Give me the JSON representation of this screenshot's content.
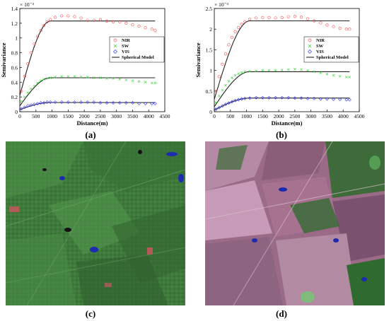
{
  "panels": {
    "a_label": "(a)",
    "b_label": "(b)",
    "c_label": "(c)",
    "d_label": "(d)"
  },
  "chart_data": [
    {
      "type": "scatter",
      "panel": "(a)",
      "title": "",
      "xlabel": "Distance(m)",
      "ylabel": "Semivariance",
      "y_exponent": "× 10⁻³",
      "xlim": [
        0,
        4500
      ],
      "ylim": [
        0,
        1.4
      ],
      "xticks": [
        0,
        500,
        1000,
        1500,
        2000,
        2500,
        3000,
        3500,
        4000,
        4500
      ],
      "yticks": [
        0,
        0.2,
        0.4,
        0.6,
        0.8,
        1,
        1.2,
        1.4
      ],
      "legend_position": "right",
      "legend": [
        "NIR",
        "SW",
        "VIS",
        "Spherical Model"
      ],
      "x": [
        50,
        150,
        250,
        350,
        450,
        550,
        650,
        750,
        850,
        950,
        1100,
        1300,
        1500,
        1700,
        1900,
        2100,
        2300,
        2500,
        2700,
        2900,
        3100,
        3300,
        3500,
        3700,
        3900,
        4100,
        4200
      ],
      "series": [
        {
          "name": "NIR",
          "marker": "circle",
          "color": "#ff4d4d",
          "values": [
            0.28,
            0.48,
            0.65,
            0.8,
            0.92,
            1.02,
            1.1,
            1.17,
            1.22,
            1.25,
            1.28,
            1.3,
            1.3,
            1.29,
            1.27,
            1.24,
            1.24,
            1.25,
            1.23,
            1.22,
            1.22,
            1.2,
            1.18,
            1.16,
            1.14,
            1.12,
            1.1
          ]
        },
        {
          "name": "SW",
          "marker": "x",
          "color": "#33d633",
          "values": [
            0.14,
            0.2,
            0.26,
            0.31,
            0.35,
            0.39,
            0.42,
            0.44,
            0.45,
            0.46,
            0.47,
            0.48,
            0.48,
            0.48,
            0.47,
            0.47,
            0.46,
            0.46,
            0.45,
            0.45,
            0.44,
            0.43,
            0.42,
            0.41,
            0.4,
            0.39,
            0.39
          ]
        },
        {
          "name": "VIS",
          "marker": "diamond",
          "color": "#3333ff",
          "values": [
            0.04,
            0.06,
            0.08,
            0.09,
            0.1,
            0.11,
            0.12,
            0.12,
            0.13,
            0.13,
            0.13,
            0.13,
            0.13,
            0.13,
            0.13,
            0.13,
            0.13,
            0.12,
            0.12,
            0.12,
            0.12,
            0.12,
            0.12,
            0.11,
            0.11,
            0.11,
            0.11
          ]
        }
      ],
      "models": [
        {
          "name": "Spherical Model",
          "nugget": 0.22,
          "sill": 1.23,
          "range": 950
        },
        {
          "name": "Spherical Model",
          "nugget": 0.08,
          "sill": 0.46,
          "range": 950
        },
        {
          "name": "Spherical Model",
          "nugget": 0.03,
          "sill": 0.125,
          "range": 950
        }
      ]
    },
    {
      "type": "scatter",
      "panel": "(b)",
      "title": "",
      "xlabel": "Distance(m)",
      "ylabel": "Semivariance",
      "y_exponent": "× 10⁻³",
      "xlim": [
        0,
        4500
      ],
      "ylim": [
        0,
        2.5
      ],
      "xticks": [
        0,
        500,
        1000,
        1500,
        2000,
        2500,
        3000,
        3500,
        4000,
        4500
      ],
      "yticks": [
        0,
        0.5,
        1,
        1.5,
        2,
        2.5
      ],
      "legend_position": "right",
      "legend": [
        "NIR",
        "SW",
        "VIS",
        "Spherical Model"
      ],
      "x": [
        50,
        150,
        250,
        350,
        450,
        550,
        650,
        750,
        850,
        950,
        1100,
        1300,
        1500,
        1700,
        1900,
        2100,
        2300,
        2500,
        2700,
        2900,
        3100,
        3300,
        3500,
        3700,
        3900,
        4100,
        4200
      ],
      "series": [
        {
          "name": "NIR",
          "marker": "circle",
          "color": "#ff4d4d",
          "values": [
            0.5,
            0.85,
            1.15,
            1.4,
            1.62,
            1.8,
            1.94,
            2.04,
            2.12,
            2.18,
            2.24,
            2.27,
            2.28,
            2.28,
            2.27,
            2.28,
            2.3,
            2.31,
            2.29,
            2.25,
            2.2,
            2.15,
            2.1,
            2.06,
            2.02,
            2.0,
            2.0
          ]
        },
        {
          "name": "SW",
          "marker": "x",
          "color": "#33d633",
          "values": [
            0.22,
            0.38,
            0.52,
            0.64,
            0.74,
            0.82,
            0.88,
            0.92,
            0.95,
            0.97,
            0.98,
            0.99,
            1.0,
            1.0,
            1.0,
            1.01,
            1.02,
            1.03,
            1.02,
            1.0,
            0.97,
            0.94,
            0.91,
            0.88,
            0.86,
            0.84,
            0.84
          ]
        },
        {
          "name": "VIS",
          "marker": "diamond",
          "color": "#3333ff",
          "values": [
            0.06,
            0.1,
            0.14,
            0.18,
            0.21,
            0.24,
            0.27,
            0.29,
            0.31,
            0.32,
            0.33,
            0.34,
            0.34,
            0.34,
            0.34,
            0.34,
            0.34,
            0.33,
            0.33,
            0.32,
            0.32,
            0.31,
            0.31,
            0.3,
            0.3,
            0.29,
            0.29
          ]
        }
      ],
      "models": [
        {
          "name": "Spherical Model",
          "nugget": 0.3,
          "sill": 2.2,
          "range": 1100
        },
        {
          "name": "Spherical Model",
          "nugget": 0.12,
          "sill": 0.97,
          "range": 1100
        },
        {
          "name": "Spherical Model",
          "nugget": 0.04,
          "sill": 0.33,
          "range": 1100
        }
      ]
    }
  ],
  "images": {
    "c_palette": {
      "base": "#3f7a3c",
      "dark": "#2c5a2c",
      "light": "#5ea056",
      "water": "#1d2bb0",
      "soil": "#b25a5a"
    },
    "d_palette": {
      "base": "#9a6a86",
      "dark": "#3f6a3a",
      "light": "#c79bb8",
      "water": "#1d2bb0",
      "forest": "#2f6a2f"
    }
  }
}
